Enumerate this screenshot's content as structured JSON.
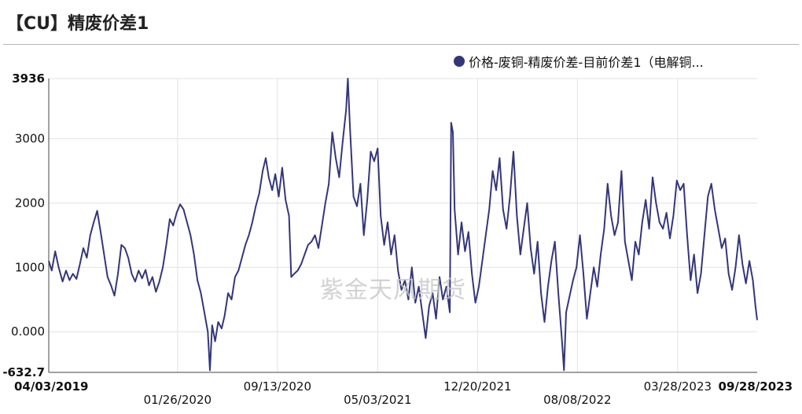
{
  "title": "【CU】精废价差1",
  "watermark": "紫金天风期货",
  "legend": {
    "label": "价格-废铜-精废价差-目前价差1（电解铜...",
    "color": "#34367a"
  },
  "chart_data": {
    "type": "line",
    "title": "【CU】精废价差1",
    "xlabel": "",
    "ylabel": "",
    "ylim": [
      -632.7,
      3936
    ],
    "grid": true,
    "legend_position": "top-right",
    "y_ticks": [
      {
        "value": 3936,
        "label": "3936",
        "bold": true
      },
      {
        "value": 3000,
        "label": "3000",
        "bold": false
      },
      {
        "value": 2000,
        "label": "2000",
        "bold": false
      },
      {
        "value": 1000,
        "label": "1000",
        "bold": false
      },
      {
        "value": 0,
        "label": "0.000",
        "bold": false
      },
      {
        "value": -632.7,
        "label": "-632.7",
        "bold": true
      }
    ],
    "x_ticks": [
      {
        "date": "2019-04-03",
        "label": "04/03/2019",
        "bold": true,
        "row": 1
      },
      {
        "date": "2020-01-26",
        "label": "01/26/2020",
        "bold": false,
        "row": 2
      },
      {
        "date": "2020-09-13",
        "label": "09/13/2020",
        "bold": false,
        "row": 1
      },
      {
        "date": "2021-05-03",
        "label": "05/03/2021",
        "bold": false,
        "row": 2
      },
      {
        "date": "2021-12-20",
        "label": "12/20/2021",
        "bold": false,
        "row": 1
      },
      {
        "date": "2022-08-08",
        "label": "08/08/2022",
        "bold": false,
        "row": 2
      },
      {
        "date": "2023-03-28",
        "label": "03/28/2023",
        "bold": false,
        "row": 1
      },
      {
        "date": "2023-09-28",
        "label": "09/28/2023",
        "bold": true,
        "row": 1
      }
    ],
    "series": [
      {
        "name": "价格-废铜-精废价差-目前价差1（电解铜...",
        "color": "#34367a",
        "points": [
          [
            "2019-04-03",
            1100
          ],
          [
            "2019-04-10",
            950
          ],
          [
            "2019-04-18",
            1250
          ],
          [
            "2019-04-26",
            1000
          ],
          [
            "2019-05-05",
            780
          ],
          [
            "2019-05-13",
            950
          ],
          [
            "2019-05-21",
            800
          ],
          [
            "2019-05-29",
            900
          ],
          [
            "2019-06-06",
            820
          ],
          [
            "2019-06-14",
            1050
          ],
          [
            "2019-06-22",
            1300
          ],
          [
            "2019-06-30",
            1150
          ],
          [
            "2019-07-08",
            1500
          ],
          [
            "2019-07-16",
            1700
          ],
          [
            "2019-07-24",
            1880
          ],
          [
            "2019-08-01",
            1550
          ],
          [
            "2019-08-09",
            1200
          ],
          [
            "2019-08-17",
            850
          ],
          [
            "2019-08-25",
            720
          ],
          [
            "2019-09-02",
            560
          ],
          [
            "2019-09-10",
            900
          ],
          [
            "2019-09-18",
            1350
          ],
          [
            "2019-09-26",
            1300
          ],
          [
            "2019-10-04",
            1150
          ],
          [
            "2019-10-12",
            900
          ],
          [
            "2019-10-20",
            780
          ],
          [
            "2019-10-28",
            950
          ],
          [
            "2019-11-05",
            830
          ],
          [
            "2019-11-13",
            960
          ],
          [
            "2019-11-21",
            720
          ],
          [
            "2019-11-29",
            850
          ],
          [
            "2019-12-07",
            620
          ],
          [
            "2019-12-15",
            780
          ],
          [
            "2019-12-23",
            1000
          ],
          [
            "2019-12-31",
            1350
          ],
          [
            "2020-01-08",
            1750
          ],
          [
            "2020-01-16",
            1650
          ],
          [
            "2020-01-24",
            1850
          ],
          [
            "2020-02-01",
            1980
          ],
          [
            "2020-02-09",
            1900
          ],
          [
            "2020-02-17",
            1700
          ],
          [
            "2020-02-25",
            1500
          ],
          [
            "2020-03-04",
            1200
          ],
          [
            "2020-03-12",
            800
          ],
          [
            "2020-03-20",
            600
          ],
          [
            "2020-03-28",
            300
          ],
          [
            "2020-04-05",
            0
          ],
          [
            "2020-04-10",
            -600
          ],
          [
            "2020-04-15",
            100
          ],
          [
            "2020-04-22",
            -150
          ],
          [
            "2020-04-29",
            150
          ],
          [
            "2020-05-07",
            50
          ],
          [
            "2020-05-14",
            250
          ],
          [
            "2020-05-22",
            600
          ],
          [
            "2020-05-30",
            500
          ],
          [
            "2020-06-07",
            850
          ],
          [
            "2020-06-15",
            950
          ],
          [
            "2020-06-23",
            1150
          ],
          [
            "2020-07-01",
            1350
          ],
          [
            "2020-07-09",
            1500
          ],
          [
            "2020-07-17",
            1700
          ],
          [
            "2020-07-25",
            1950
          ],
          [
            "2020-08-02",
            2150
          ],
          [
            "2020-08-10",
            2500
          ],
          [
            "2020-08-17",
            2700
          ],
          [
            "2020-08-24",
            2400
          ],
          [
            "2020-09-01",
            2200
          ],
          [
            "2020-09-08",
            2450
          ],
          [
            "2020-09-16",
            2100
          ],
          [
            "2020-09-24",
            2550
          ],
          [
            "2020-10-02",
            2050
          ],
          [
            "2020-10-10",
            1800
          ],
          [
            "2020-10-15",
            850
          ],
          [
            "2020-10-22",
            900
          ],
          [
            "2020-10-30",
            950
          ],
          [
            "2020-11-07",
            1050
          ],
          [
            "2020-11-15",
            1200
          ],
          [
            "2020-11-23",
            1350
          ],
          [
            "2020-12-01",
            1400
          ],
          [
            "2020-12-09",
            1500
          ],
          [
            "2020-12-17",
            1300
          ],
          [
            "2020-12-25",
            1650
          ],
          [
            "2021-01-02",
            2000
          ],
          [
            "2021-01-10",
            2300
          ],
          [
            "2021-01-18",
            3100
          ],
          [
            "2021-01-26",
            2700
          ],
          [
            "2021-02-03",
            2400
          ],
          [
            "2021-02-11",
            2950
          ],
          [
            "2021-02-19",
            3450
          ],
          [
            "2021-02-23",
            3936
          ],
          [
            "2021-02-28",
            3150
          ],
          [
            "2021-03-08",
            2100
          ],
          [
            "2021-03-16",
            1950
          ],
          [
            "2021-03-24",
            2300
          ],
          [
            "2021-04-01",
            1500
          ],
          [
            "2021-04-09",
            2050
          ],
          [
            "2021-04-17",
            2800
          ],
          [
            "2021-04-25",
            2650
          ],
          [
            "2021-05-03",
            2850
          ],
          [
            "2021-05-10",
            1800
          ],
          [
            "2021-05-18",
            1350
          ],
          [
            "2021-05-26",
            1700
          ],
          [
            "2021-06-03",
            1200
          ],
          [
            "2021-06-11",
            1500
          ],
          [
            "2021-06-19",
            950
          ],
          [
            "2021-06-27",
            650
          ],
          [
            "2021-07-05",
            800
          ],
          [
            "2021-07-13",
            500
          ],
          [
            "2021-07-21",
            1000
          ],
          [
            "2021-07-29",
            450
          ],
          [
            "2021-08-06",
            700
          ],
          [
            "2021-08-14",
            300
          ],
          [
            "2021-08-22",
            -100
          ],
          [
            "2021-08-30",
            400
          ],
          [
            "2021-09-07",
            600
          ],
          [
            "2021-09-15",
            200
          ],
          [
            "2021-09-23",
            850
          ],
          [
            "2021-10-01",
            500
          ],
          [
            "2021-10-09",
            700
          ],
          [
            "2021-10-17",
            300
          ],
          [
            "2021-10-20",
            3250
          ],
          [
            "2021-10-24",
            3100
          ],
          [
            "2021-10-28",
            1900
          ],
          [
            "2021-11-05",
            1200
          ],
          [
            "2021-11-13",
            1700
          ],
          [
            "2021-11-21",
            1250
          ],
          [
            "2021-11-29",
            1550
          ],
          [
            "2021-12-07",
            900
          ],
          [
            "2021-12-15",
            450
          ],
          [
            "2021-12-23",
            700
          ],
          [
            "2021-12-31",
            1100
          ],
          [
            "2022-01-08",
            1500
          ],
          [
            "2022-01-16",
            1900
          ],
          [
            "2022-01-24",
            2500
          ],
          [
            "2022-02-01",
            2200
          ],
          [
            "2022-02-09",
            2700
          ],
          [
            "2022-02-17",
            1900
          ],
          [
            "2022-02-25",
            1600
          ],
          [
            "2022-03-05",
            2100
          ],
          [
            "2022-03-13",
            2800
          ],
          [
            "2022-03-21",
            1800
          ],
          [
            "2022-03-29",
            1200
          ],
          [
            "2022-04-06",
            1600
          ],
          [
            "2022-04-14",
            2000
          ],
          [
            "2022-04-22",
            1300
          ],
          [
            "2022-04-30",
            900
          ],
          [
            "2022-05-08",
            1400
          ],
          [
            "2022-05-16",
            600
          ],
          [
            "2022-05-24",
            150
          ],
          [
            "2022-06-01",
            700
          ],
          [
            "2022-06-09",
            1100
          ],
          [
            "2022-06-17",
            1400
          ],
          [
            "2022-06-25",
            600
          ],
          [
            "2022-07-03",
            -100
          ],
          [
            "2022-07-08",
            -600
          ],
          [
            "2022-07-13",
            300
          ],
          [
            "2022-07-21",
            550
          ],
          [
            "2022-07-29",
            800
          ],
          [
            "2022-08-06",
            1000
          ],
          [
            "2022-08-14",
            1500
          ],
          [
            "2022-08-22",
            900
          ],
          [
            "2022-08-30",
            200
          ],
          [
            "2022-09-07",
            600
          ],
          [
            "2022-09-15",
            1000
          ],
          [
            "2022-09-23",
            700
          ],
          [
            "2022-10-01",
            1200
          ],
          [
            "2022-10-09",
            1600
          ],
          [
            "2022-10-17",
            2300
          ],
          [
            "2022-10-25",
            1800
          ],
          [
            "2022-11-02",
            1500
          ],
          [
            "2022-11-10",
            1700
          ],
          [
            "2022-11-18",
            2500
          ],
          [
            "2022-11-26",
            1400
          ],
          [
            "2022-12-04",
            1100
          ],
          [
            "2022-12-12",
            800
          ],
          [
            "2022-12-20",
            1400
          ],
          [
            "2022-12-28",
            1200
          ],
          [
            "2023-01-05",
            1700
          ],
          [
            "2023-01-13",
            2050
          ],
          [
            "2023-01-21",
            1600
          ],
          [
            "2023-01-29",
            2400
          ],
          [
            "2023-02-06",
            2000
          ],
          [
            "2023-02-14",
            1700
          ],
          [
            "2023-02-22",
            1600
          ],
          [
            "2023-03-02",
            1850
          ],
          [
            "2023-03-10",
            1450
          ],
          [
            "2023-03-18",
            1800
          ],
          [
            "2023-03-26",
            2350
          ],
          [
            "2023-04-03",
            2200
          ],
          [
            "2023-04-11",
            2300
          ],
          [
            "2023-04-19",
            1500
          ],
          [
            "2023-04-27",
            800
          ],
          [
            "2023-05-05",
            1200
          ],
          [
            "2023-05-13",
            600
          ],
          [
            "2023-05-21",
            900
          ],
          [
            "2023-05-29",
            1500
          ],
          [
            "2023-06-06",
            2100
          ],
          [
            "2023-06-14",
            2300
          ],
          [
            "2023-06-22",
            1900
          ],
          [
            "2023-06-30",
            1600
          ],
          [
            "2023-07-08",
            1300
          ],
          [
            "2023-07-16",
            1450
          ],
          [
            "2023-07-24",
            900
          ],
          [
            "2023-08-01",
            650
          ],
          [
            "2023-08-09",
            1000
          ],
          [
            "2023-08-17",
            1500
          ],
          [
            "2023-08-25",
            1050
          ],
          [
            "2023-09-02",
            750
          ],
          [
            "2023-09-10",
            1100
          ],
          [
            "2023-09-18",
            800
          ],
          [
            "2023-09-24",
            400
          ],
          [
            "2023-09-28",
            180
          ]
        ]
      }
    ]
  }
}
